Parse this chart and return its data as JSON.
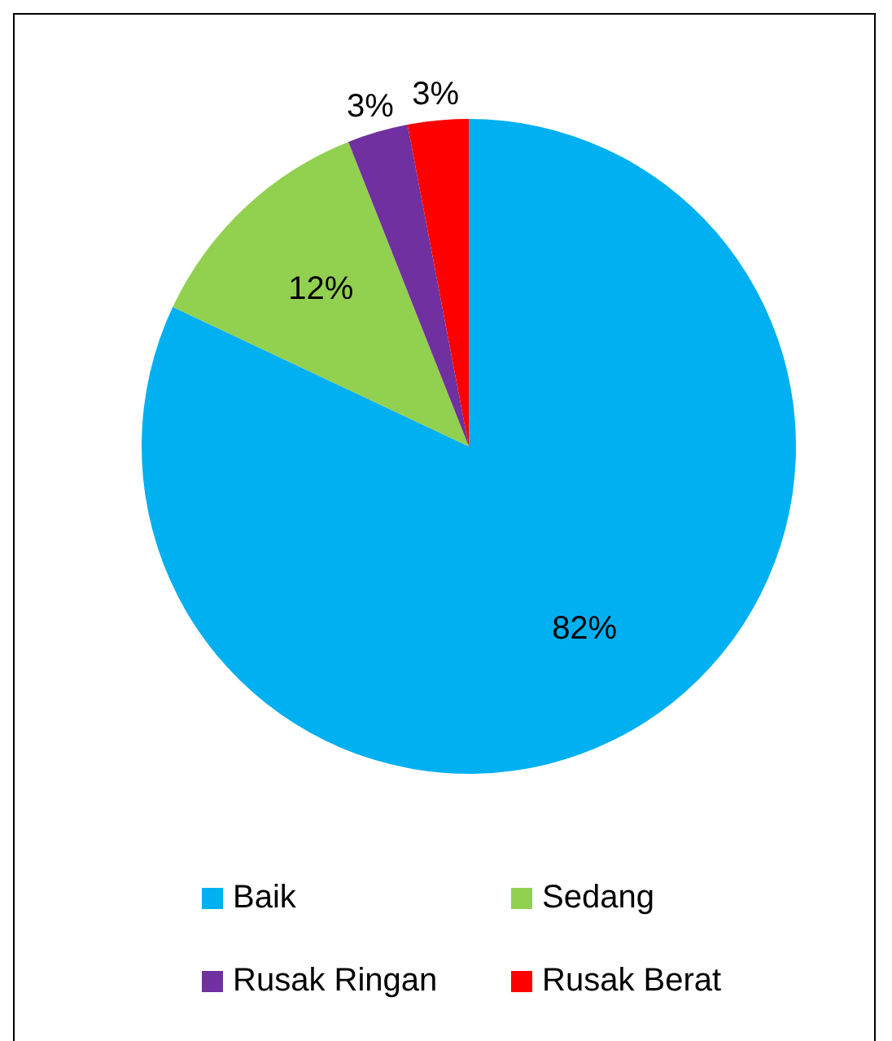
{
  "chart_data": {
    "type": "pie",
    "categories": [
      "Baik",
      "Sedang",
      "Rusak Ringan",
      "Rusak Berat"
    ],
    "values": [
      82,
      12,
      3,
      3
    ],
    "colors": [
      "#00b0f0",
      "#92d050",
      "#7030a0",
      "#ff0000"
    ],
    "value_labels": [
      "82%",
      "12%",
      "3%",
      "3%"
    ],
    "legend": "bottom"
  }
}
